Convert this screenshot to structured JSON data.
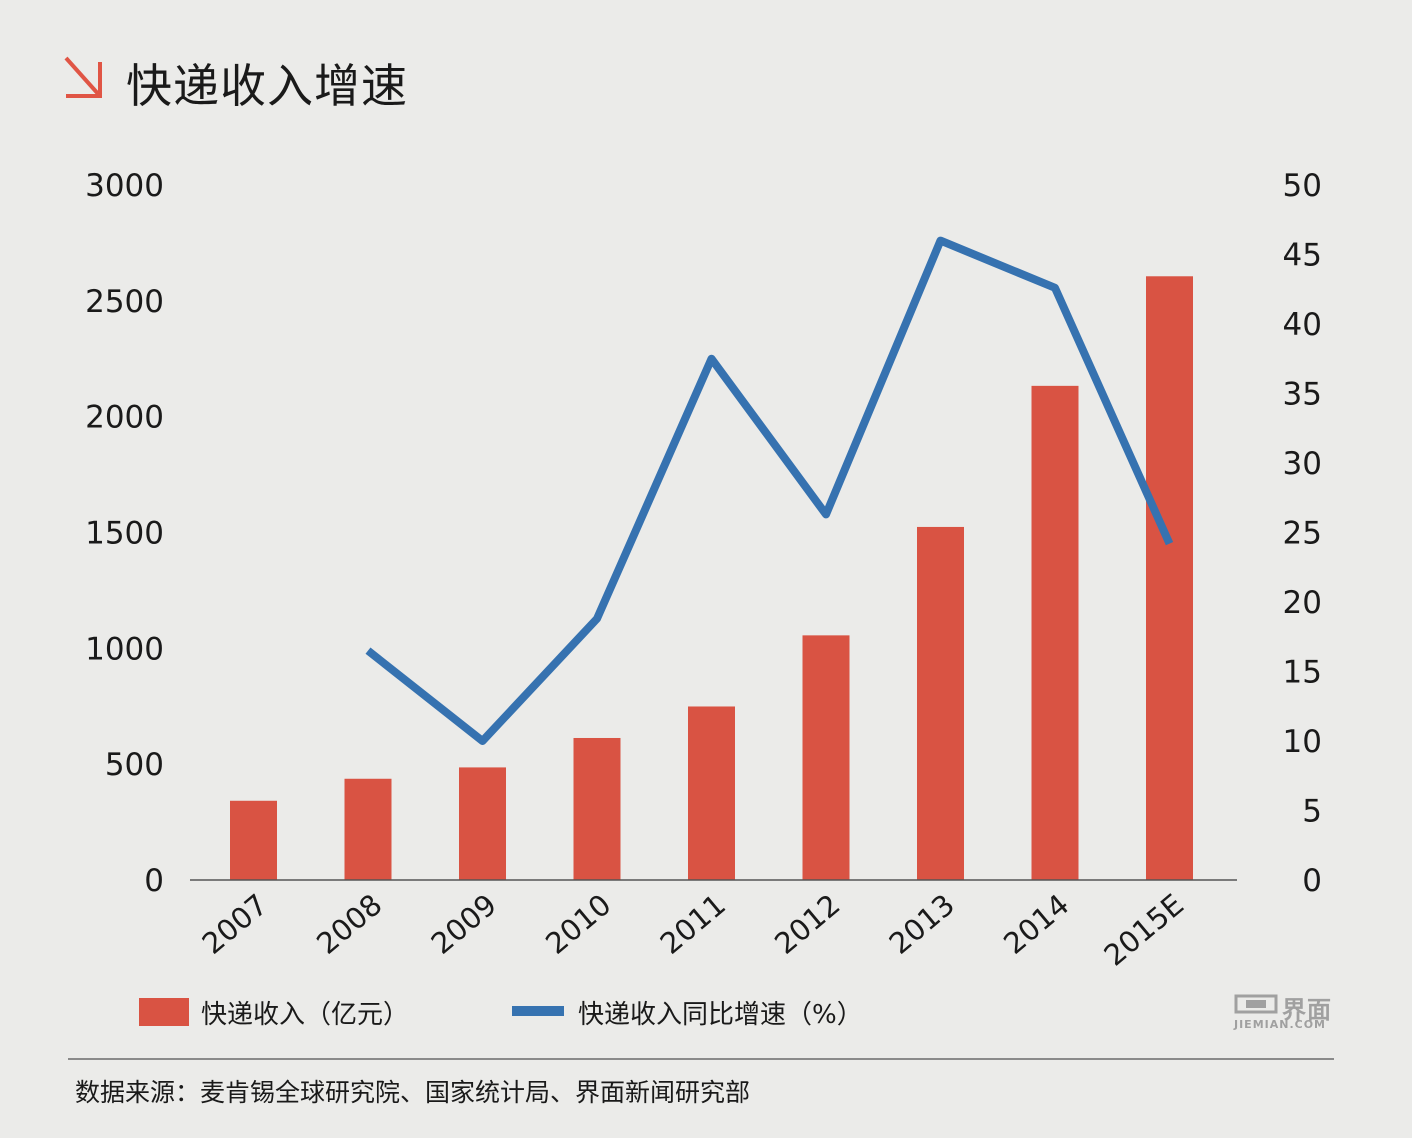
{
  "title": "快递收入增速",
  "legend": {
    "bar_label": "快递收入（亿元）",
    "line_label": "快递收入同比增速（%）"
  },
  "logo": {
    "cn": "界面",
    "en": "JIEMIAN.COM"
  },
  "source": "数据来源：麦肯锡全球研究院、国家统计局、界面新闻研究部",
  "colors": {
    "background": "#ebebe9",
    "bar": "#d95343",
    "line": "#3672b0",
    "accent_arrow": "#e05545",
    "axis": "#555555"
  },
  "chart_data": {
    "type": "bar+line",
    "categories": [
      "2007",
      "2008",
      "2009",
      "2010",
      "2011",
      "2012",
      "2013",
      "2014",
      "2015E"
    ],
    "series": [
      {
        "name": "快递收入（亿元）",
        "type": "bar",
        "axis": "left",
        "values": [
          342,
          437,
          486,
          613,
          749,
          1056,
          1524,
          2133,
          2606
        ]
      },
      {
        "name": "快递收入同比增速（%）",
        "type": "line",
        "axis": "right",
        "values": [
          null,
          16.5,
          10.0,
          18.8,
          37.5,
          26.3,
          46.0,
          42.6,
          24.2
        ]
      }
    ],
    "left_axis": {
      "min": 0,
      "max": 3000,
      "ticks": [
        "0",
        "500",
        "1000",
        "1500",
        "2000",
        "2500",
        "3000"
      ]
    },
    "right_axis": {
      "min": 0,
      "max": 50,
      "ticks": [
        "0",
        "5",
        "10",
        "15",
        "20",
        "25",
        "30",
        "35",
        "40",
        "45",
        "50"
      ]
    },
    "grid": false
  }
}
